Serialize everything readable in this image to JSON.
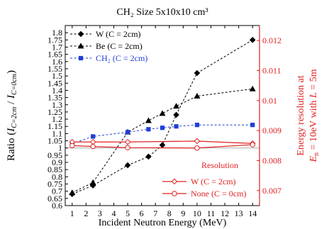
{
  "chart_data": {
    "type": "line",
    "title": "CH₂ Size 5x10x10 cm³",
    "xlabel": "Incident Neutron Energy (MeV)",
    "ylabel_left": "Ratio (I_C=2cm / I_C=0cm)",
    "ylabel_left_parts": [
      "Ratio (",
      "I",
      "C=2cm",
      " / ",
      "I",
      "C=0cm",
      ")"
    ],
    "ylabel_right_line1": "Energy resolution at",
    "ylabel_right_line2_parts": [
      "E",
      "n",
      " = 10eV with ",
      "L",
      " = 5m"
    ],
    "xlim": [
      0.5,
      14.5
    ],
    "x_ticks": [
      1,
      2,
      3,
      4,
      5,
      6,
      7,
      8,
      9,
      10,
      11,
      12,
      13,
      14
    ],
    "ylim_left": [
      0.6,
      1.85
    ],
    "y_ticks_left": [
      "0.6",
      "0.65",
      "0.7",
      "0.75",
      "0.8",
      "0.85",
      "0.9",
      "0.95",
      "1",
      "1.05",
      "1.1",
      "1.15",
      "1.2",
      "1.25",
      "1.3",
      "1.35",
      "1.4",
      "1.45",
      "1.5",
      "1.55",
      "1.6",
      "1.65",
      "1.7",
      "1.75",
      "1.8"
    ],
    "y_tick_values_left": [
      0.6,
      0.65,
      0.7,
      0.75,
      0.8,
      0.85,
      0.9,
      0.95,
      1.0,
      1.05,
      1.1,
      1.15,
      1.2,
      1.25,
      1.3,
      1.35,
      1.4,
      1.45,
      1.5,
      1.55,
      1.6,
      1.65,
      1.7,
      1.75,
      1.8
    ],
    "ylim_right": [
      0.0065,
      0.0125
    ],
    "y_ticks_right": [
      "0.007",
      "0.008",
      "0.009",
      "0.01",
      "0.011",
      "0.012"
    ],
    "y_tick_values_right": [
      0.007,
      0.008,
      0.009,
      0.01,
      0.011,
      0.012
    ],
    "reference_line": 1.0,
    "legend_title": "Resolution",
    "series": [
      {
        "name": "W (C = 2cm)",
        "axis": "left",
        "style": "dashed",
        "marker": "diamond",
        "color": "#000000",
        "x": [
          1,
          2.5,
          5,
          6.5,
          7.5,
          8.5,
          10,
          14
        ],
        "y": [
          0.68,
          0.74,
          0.88,
          0.94,
          1.02,
          1.23,
          1.52,
          1.75
        ]
      },
      {
        "name": "Be (C = 2cm)",
        "axis": "left",
        "style": "dashed",
        "marker": "triangle",
        "color": "#000000",
        "x": [
          1,
          2.5,
          5,
          6.5,
          7.5,
          8.5,
          10,
          14
        ],
        "y": [
          0.69,
          0.76,
          1.11,
          1.19,
          1.24,
          1.29,
          1.36,
          1.41
        ]
      },
      {
        "name": "CH₂ (C = 2cm)",
        "axis": "left",
        "style": "dashed",
        "marker": "square",
        "color": "#1f3fd6",
        "x": [
          1,
          2.5,
          5,
          6.5,
          7.5,
          8.5,
          10,
          14
        ],
        "y": [
          1.03,
          1.08,
          1.11,
          1.13,
          1.14,
          1.15,
          1.16,
          1.16
        ]
      },
      {
        "name": "W (C = 2cm)",
        "axis": "right",
        "style": "solid",
        "marker": "diamond-open",
        "color": "#e02020",
        "x": [
          1,
          2.5,
          5,
          10,
          14
        ],
        "y": [
          0.00862,
          0.00862,
          0.00862,
          0.00865,
          0.00857
        ]
      },
      {
        "name": "None (C = 0cm)",
        "axis": "right",
        "style": "solid",
        "marker": "circle-open",
        "color": "#e02020",
        "x": [
          1,
          2.5,
          5,
          10,
          14
        ],
        "y": [
          0.0085,
          0.00847,
          0.00843,
          0.00842,
          0.00853
        ]
      }
    ],
    "colors": {
      "axis": "#000000",
      "right_axis": "#e02020",
      "reference": "#aaaaaa"
    }
  }
}
